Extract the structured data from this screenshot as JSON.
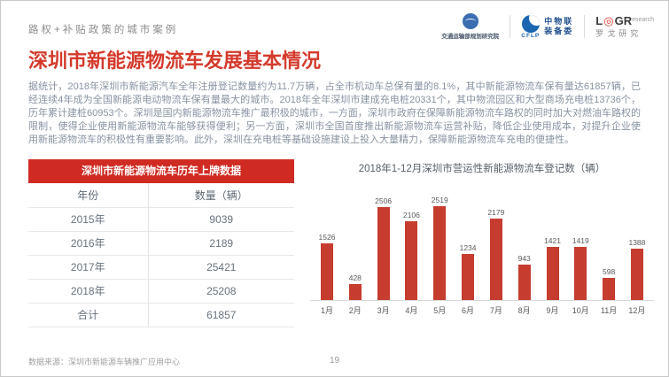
{
  "header": {
    "eyebrow": "路权+补贴政策的城市案例",
    "title": "深圳市新能源物流车发展基本情况"
  },
  "logos": {
    "org1": {
      "name": "交通运输部规划研究院"
    },
    "org2": {
      "abbr": "CFLP",
      "line1": "中物联",
      "line2": "装备委"
    },
    "org3": {
      "brand_left": "L",
      "brand_right": "GR",
      "brand_suffix": "esearch",
      "name": "罗戈研究"
    }
  },
  "body": {
    "paragraph": "据统计，2018年深圳市新能源汽车全年注册登记数量约为11.7万辆，占全市机动车总保有量的8.1%，其中新能源物流车保有量达61857辆，已经连续4年成为全国新能源电动物流车保有量最大的城市。2018年全年深圳市建成充电桩20331个，其中物流园区和大型商场充电桩13736个，历年累计建桩60953个。深圳是国内新能源物流车推广最积极的城市，一方面，深圳市政府在保障新能源物流车路权的同时加大对燃油车路权的限制，使得企业使用新能源物流车能够获得便利；另一方面，深圳市全国首度推出新能源物流车运营补贴，降低企业使用成本，对提升企业使用新能源物流车的积极性有重要影响。此外，深圳在充电桩等基础设施建设上投入大量精力，保障新能源物流车充电的便捷性。"
  },
  "table": {
    "title": "深圳市新能源物流车历年上牌数据",
    "columns": [
      "年份",
      "数量（辆）"
    ],
    "rows": [
      [
        "2015年",
        "9039"
      ],
      [
        "2016年",
        "2189"
      ],
      [
        "2017年",
        "25421"
      ],
      [
        "2018年",
        "25208"
      ],
      [
        "合计",
        "61857"
      ]
    ]
  },
  "chart_data": {
    "type": "bar",
    "title": "2018年1-12月深圳市营运性新能源物流车登记数（辆）",
    "categories": [
      "1月",
      "2月",
      "3月",
      "4月",
      "5月",
      "6月",
      "7月",
      "8月",
      "9月",
      "10月",
      "11月",
      "12月"
    ],
    "values": [
      1526,
      428,
      2506,
      2106,
      2519,
      1234,
      2179,
      943,
      1421,
      1419,
      598,
      1388
    ],
    "xlabel": "",
    "ylabel": "",
    "ylim": [
      0,
      2600
    ],
    "grid": false,
    "legend": false,
    "bar_color": "#c63c2e",
    "value_labels": true
  },
  "footer": {
    "source": "数据来源：深圳市新能源车辆推广应用中心",
    "page": "19"
  },
  "colors": {
    "accent_red": "#d43a2c",
    "table_header_red": "#d02b23",
    "bar_red": "#c63c2e",
    "body_gray": "#8893a3",
    "logo_blue": "#1b66b1"
  }
}
